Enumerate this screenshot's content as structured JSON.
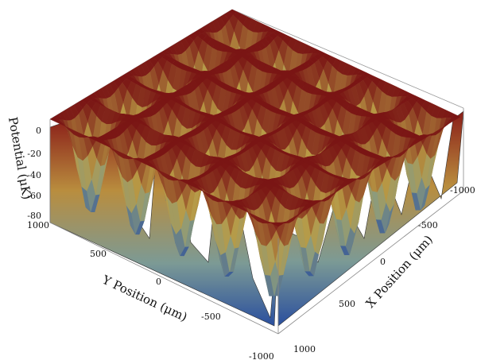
{
  "chart_data": {
    "type": "surface3d",
    "title": "",
    "zlabel": "Potential (μK)",
    "ylabel": "Y Position (μm)",
    "xlabel": "X Position (μm)",
    "z_ticks": [
      "0",
      "-20",
      "-40",
      "-60",
      "-80"
    ],
    "y_ticks": [
      "1000",
      "500",
      "0",
      "-500",
      "-1000"
    ],
    "x_ticks": [
      "-1000",
      "-500",
      "0",
      "500",
      "1000"
    ],
    "xlim": [
      -1000,
      1000
    ],
    "ylim": [
      -1000,
      1000
    ],
    "zlim": [
      -80,
      0
    ],
    "lattice_wells_x": 5,
    "lattice_wells_y": 5,
    "well_depth_uK": -75,
    "barrier_height_uK": 0,
    "colors": {
      "low": "#2a4f9e",
      "mid_low": "#8a9b7e",
      "mid": "#b99b45",
      "high": "#7a1514"
    }
  }
}
